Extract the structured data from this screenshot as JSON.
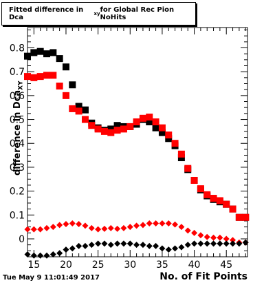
{
  "chart_data": {
    "type": "scatter",
    "title": "Fitted difference in Dca",
    "title_sub": "xy",
    "title_suffix": " for Global Rec Pion NoHits",
    "xlabel": "No. of Fit Points",
    "ylabel": "difference in Dca",
    "ylabel_sub": "XY",
    "xlim": [
      14,
      48.3
    ],
    "ylim": [
      -0.075,
      0.885
    ],
    "x_ticks": [
      15,
      20,
      25,
      30,
      35,
      40,
      45
    ],
    "y_ticks": [
      0,
      0.1,
      0.2,
      0.3,
      0.4,
      0.5,
      0.6,
      0.7,
      0.8
    ],
    "x_tick_labels": [
      "15",
      "20",
      "25",
      "30",
      "35",
      "40",
      "45"
    ],
    "y_tick_labels": [
      "0",
      "0.1",
      "0.2",
      "0.3",
      "0.4",
      "0.5",
      "0.6",
      "0.7",
      "0.8"
    ],
    "grid": false,
    "series": [
      {
        "color": "#000000",
        "marker": "square",
        "x": [
          14,
          15,
          16,
          17,
          18,
          19,
          20,
          21,
          22,
          23,
          24,
          25,
          26,
          27,
          28,
          29,
          30,
          31,
          32,
          33,
          34,
          35,
          36,
          37,
          38,
          39,
          40,
          41,
          42,
          43,
          44,
          45,
          46,
          47,
          48
        ],
        "values": [
          0.765,
          0.78,
          0.785,
          0.775,
          0.78,
          0.755,
          0.72,
          0.645,
          0.555,
          0.54,
          0.485,
          0.465,
          0.455,
          0.46,
          0.475,
          0.47,
          0.47,
          0.48,
          0.5,
          0.49,
          0.465,
          0.445,
          0.42,
          0.39,
          0.34,
          0.29,
          0.245,
          0.205,
          0.18,
          0.165,
          0.155,
          0.145,
          0.125,
          0.09,
          0.09
        ]
      },
      {
        "color": "#ff0000",
        "marker": "square",
        "x": [
          14,
          15,
          16,
          17,
          18,
          19,
          20,
          21,
          22,
          23,
          24,
          25,
          26,
          27,
          28,
          29,
          30,
          31,
          32,
          33,
          34,
          35,
          36,
          37,
          38,
          39,
          40,
          41,
          42,
          43,
          44,
          45,
          46,
          47,
          48
        ],
        "values": [
          0.68,
          0.675,
          0.68,
          0.685,
          0.685,
          0.64,
          0.6,
          0.545,
          0.535,
          0.5,
          0.475,
          0.46,
          0.45,
          0.445,
          0.455,
          0.46,
          0.47,
          0.49,
          0.505,
          0.51,
          0.49,
          0.465,
          0.435,
          0.4,
          0.355,
          0.295,
          0.245,
          0.21,
          0.185,
          0.17,
          0.16,
          0.145,
          0.125,
          0.09,
          0.09
        ]
      },
      {
        "color": "#ff0000",
        "marker": "diamond",
        "x": [
          14,
          15,
          16,
          17,
          18,
          19,
          20,
          21,
          22,
          23,
          24,
          25,
          26,
          27,
          28,
          29,
          30,
          31,
          32,
          33,
          34,
          35,
          36,
          37,
          38,
          39,
          40,
          41,
          42,
          43,
          44,
          45,
          46,
          47,
          48
        ],
        "values": [
          0.04,
          0.04,
          0.04,
          0.045,
          0.05,
          0.058,
          0.062,
          0.065,
          0.062,
          0.055,
          0.045,
          0.04,
          0.042,
          0.045,
          0.042,
          0.045,
          0.05,
          0.055,
          0.058,
          0.065,
          0.065,
          0.065,
          0.065,
          0.06,
          0.05,
          0.035,
          0.025,
          0.015,
          0.008,
          0.005,
          0.005,
          0.0,
          -0.005,
          -0.015,
          -0.015
        ]
      },
      {
        "color": "#000000",
        "marker": "diamond",
        "x": [
          14,
          15,
          16,
          17,
          18,
          19,
          20,
          21,
          22,
          23,
          24,
          25,
          26,
          27,
          28,
          29,
          30,
          31,
          32,
          33,
          34,
          35,
          36,
          37,
          38,
          39,
          40,
          41,
          42,
          43,
          44,
          45,
          46,
          47,
          48
        ],
        "values": [
          -0.065,
          -0.07,
          -0.07,
          -0.07,
          -0.065,
          -0.06,
          -0.045,
          -0.04,
          -0.03,
          -0.03,
          -0.025,
          -0.02,
          -0.02,
          -0.025,
          -0.02,
          -0.02,
          -0.02,
          -0.025,
          -0.025,
          -0.03,
          -0.03,
          -0.04,
          -0.045,
          -0.04,
          -0.035,
          -0.025,
          -0.02,
          -0.02,
          -0.02,
          -0.02,
          -0.02,
          -0.02,
          -0.02,
          -0.02,
          -0.015
        ]
      }
    ]
  },
  "footer": {
    "timestamp": "Tue May  9 11:01:49 2017"
  }
}
